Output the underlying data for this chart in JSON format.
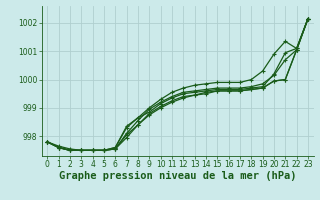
{
  "title": "Graphe pression niveau de la mer (hPa)",
  "bg_color": "#cceaea",
  "grid_color": "#b0cfcf",
  "line_color": "#1a5c1a",
  "xlim": [
    -0.5,
    23.5
  ],
  "ylim": [
    997.3,
    1002.6
  ],
  "yticks": [
    998,
    999,
    1000,
    1001,
    1002
  ],
  "xticks": [
    0,
    1,
    2,
    3,
    4,
    5,
    6,
    7,
    8,
    9,
    10,
    11,
    12,
    13,
    14,
    15,
    16,
    17,
    18,
    19,
    20,
    21,
    22,
    23
  ],
  "series": [
    [
      997.8,
      997.65,
      997.55,
      997.5,
      997.5,
      997.5,
      997.6,
      998.35,
      998.65,
      998.85,
      999.15,
      999.35,
      999.5,
      999.55,
      999.6,
      999.65,
      999.65,
      999.65,
      999.7,
      999.75,
      1000.2,
      1000.95,
      1001.1,
      1002.15
    ],
    [
      997.8,
      997.6,
      997.5,
      997.5,
      997.5,
      997.5,
      997.55,
      998.05,
      998.4,
      998.75,
      999.0,
      999.2,
      999.35,
      999.45,
      999.55,
      999.6,
      999.6,
      999.6,
      999.65,
      999.7,
      999.95,
      1000.0,
      1001.05,
      1002.15
    ],
    [
      997.8,
      997.6,
      997.5,
      997.5,
      997.5,
      997.5,
      997.55,
      998.1,
      998.55,
      998.95,
      999.2,
      999.4,
      999.55,
      999.6,
      999.65,
      999.7,
      999.7,
      999.7,
      999.75,
      999.85,
      1000.15,
      1000.7,
      1001.05,
      1002.15
    ],
    [
      997.8,
      997.6,
      997.5,
      997.5,
      997.5,
      997.5,
      997.55,
      997.95,
      998.4,
      998.8,
      999.05,
      999.25,
      999.4,
      999.45,
      999.5,
      999.6,
      999.6,
      999.6,
      999.65,
      999.7,
      999.95,
      1000.0,
      1001.05,
      1002.15
    ]
  ],
  "series_top": [
    997.8,
    997.6,
    997.5,
    997.5,
    997.5,
    997.5,
    997.6,
    998.3,
    998.65,
    999.0,
    999.3,
    999.55,
    999.7,
    999.8,
    999.85,
    999.9,
    999.9,
    999.9,
    1000.0,
    1000.3,
    1000.9,
    1001.35,
    1001.1,
    1002.15
  ],
  "marker": "+",
  "marker_size": 3.5,
  "linewidth": 0.9,
  "title_fontsize": 7.5,
  "tick_fontsize": 5.5
}
